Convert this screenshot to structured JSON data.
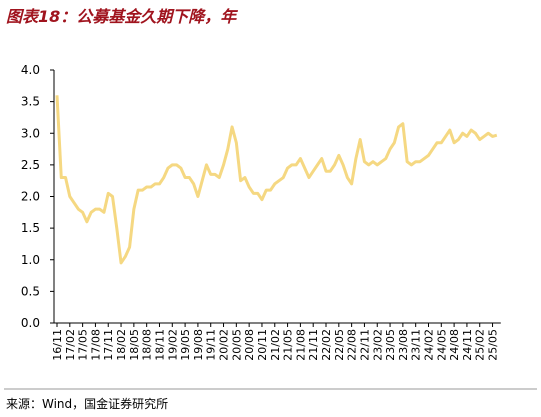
{
  "chart_data": {
    "type": "line",
    "title": "图表18：公募基金久期下降，年",
    "source": "来源：Wind，国金证券研究所",
    "categories": [
      "16/11",
      null,
      null,
      "17/02",
      null,
      null,
      "17/05",
      null,
      null,
      "17/08",
      null,
      null,
      "17/11",
      null,
      null,
      "18/02",
      null,
      null,
      "18/05",
      null,
      null,
      "18/08",
      null,
      null,
      "18/11",
      null,
      null,
      "19/02",
      null,
      null,
      "19/05",
      null,
      null,
      "19/08",
      null,
      null,
      "19/11",
      null,
      null,
      "20/02",
      null,
      null,
      "20/05",
      null,
      null,
      "20/08",
      null,
      null,
      "20/11",
      null,
      null,
      "21/02",
      null,
      null,
      "21/05",
      null,
      null,
      "21/08",
      null,
      null,
      "21/11",
      null,
      null,
      "22/02",
      null,
      null,
      "22/05",
      null,
      null,
      "22/08",
      null,
      null,
      "22/11",
      null,
      null,
      "23/02",
      null,
      null,
      "23/05",
      null,
      null,
      "23/08",
      null,
      null,
      "23/11",
      null,
      null,
      "24/02",
      null,
      null,
      "24/05",
      null,
      null,
      "24/08",
      null,
      null,
      "24/11",
      null,
      null,
      "25/02",
      null,
      null,
      "25/05",
      null
    ],
    "series": [
      {
        "color": "#f5d882",
        "values": [
          3.6,
          2.3,
          2.3,
          2.0,
          1.9,
          1.8,
          1.75,
          1.6,
          1.75,
          1.8,
          1.8,
          1.75,
          2.05,
          2.0,
          1.5,
          0.95,
          1.05,
          1.2,
          1.8,
          2.1,
          2.1,
          2.15,
          2.15,
          2.2,
          2.2,
          2.3,
          2.45,
          2.5,
          2.5,
          2.45,
          2.3,
          2.3,
          2.2,
          2.0,
          2.25,
          2.5,
          2.35,
          2.35,
          2.3,
          2.5,
          2.75,
          3.1,
          2.85,
          2.25,
          2.3,
          2.15,
          2.05,
          2.05,
          1.95,
          2.1,
          2.1,
          2.2,
          2.25,
          2.3,
          2.45,
          2.5,
          2.5,
          2.6,
          2.45,
          2.3,
          2.4,
          2.5,
          2.6,
          2.4,
          2.4,
          2.5,
          2.65,
          2.5,
          2.3,
          2.2,
          2.6,
          2.9,
          2.55,
          2.5,
          2.55,
          2.5,
          2.55,
          2.6,
          2.75,
          2.85,
          3.1,
          3.15,
          2.55,
          2.5,
          2.55,
          2.55,
          2.6,
          2.65,
          2.75,
          2.85,
          2.85,
          2.95,
          3.05,
          2.85,
          2.9,
          3.0,
          2.95,
          3.05,
          3.0,
          2.9,
          2.95,
          3.0,
          2.95,
          2.97
        ]
      }
    ],
    "ylim": [
      0,
      4
    ],
    "yticks": [
      {
        "value": 0,
        "label": "0.0"
      },
      {
        "value": 0.5,
        "label": "0.5"
      },
      {
        "value": 1,
        "label": "1.0"
      },
      {
        "value": 1.5,
        "label": "1.5"
      },
      {
        "value": 2,
        "label": "2.0"
      },
      {
        "value": 2.5,
        "label": "2.5"
      },
      {
        "value": 3,
        "label": "3.0"
      },
      {
        "value": 3.5,
        "label": "3.5"
      },
      {
        "value": 4,
        "label": "4.0"
      }
    ]
  }
}
